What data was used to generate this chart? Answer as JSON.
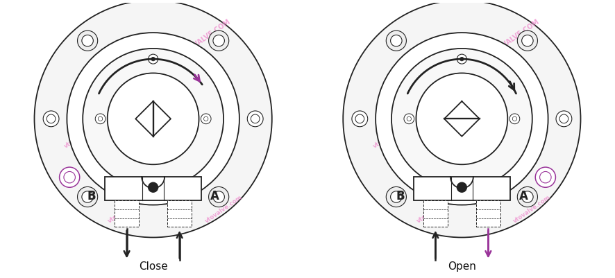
{
  "background_color": "#ffffff",
  "watermark_color": "#ee88cc",
  "left_label": "Close",
  "right_label": "Open",
  "label_A": "A",
  "label_B": "B",
  "line_color": "#222222",
  "arrow_color_purple": "#993399",
  "fig_width": 8.86,
  "fig_height": 4.01,
  "dpi": 100
}
